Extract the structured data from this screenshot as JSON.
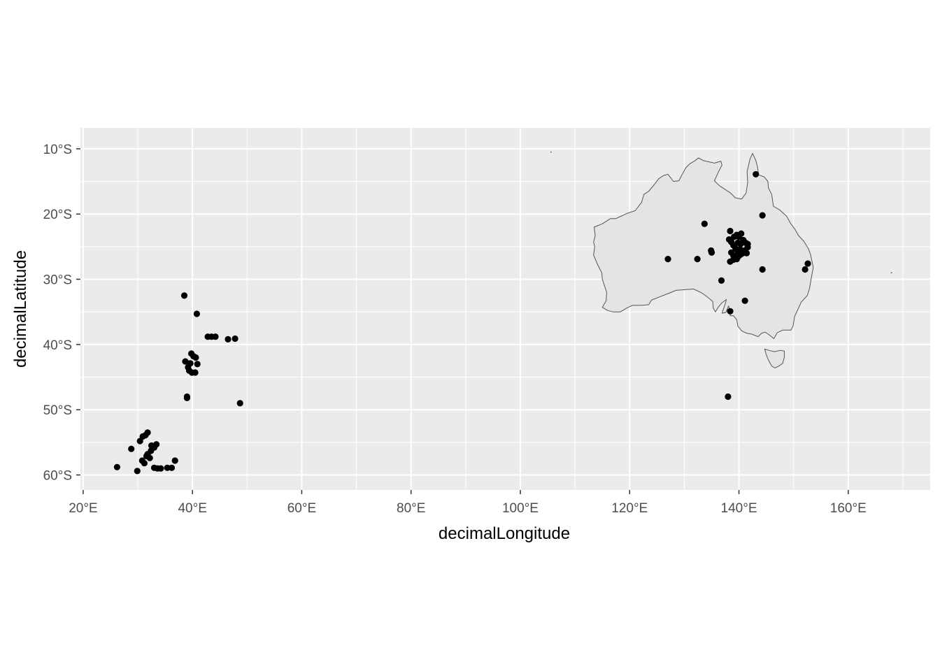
{
  "chart_data": {
    "type": "scatter",
    "title": "",
    "xlabel": "decimalLongitude",
    "ylabel": "decimalLatitude",
    "xlim": [
      19.5,
      175
    ],
    "ylim": [
      -62.3,
      -6.8
    ],
    "x_ticks": [
      20,
      40,
      60,
      80,
      100,
      120,
      140,
      160
    ],
    "x_tick_labels": [
      "20°E",
      "40°E",
      "60°E",
      "80°E",
      "100°E",
      "120°E",
      "140°E",
      "160°E"
    ],
    "y_ticks": [
      -10,
      -20,
      -30,
      -40,
      -50,
      -60
    ],
    "y_tick_labels": [
      "10°S",
      "20°S",
      "30°S",
      "40°S",
      "50°S",
      "60°S"
    ],
    "grid": true,
    "legend": "none",
    "colors": {
      "panel": "#ebebeb",
      "grid": "#ffffff",
      "land_fill": "#e4e4e4",
      "land_outline": "#555555",
      "point": "#000000"
    },
    "basemap": "Australia and Tasmania outline",
    "basemap_outline": {
      "mainland": [
        [
          113.5,
          -22.0
        ],
        [
          114.1,
          -21.8
        ],
        [
          115.0,
          -21.5
        ],
        [
          116.5,
          -20.7
        ],
        [
          117.5,
          -20.7
        ],
        [
          118.5,
          -20.3
        ],
        [
          119.5,
          -19.9
        ],
        [
          121.0,
          -19.5
        ],
        [
          122.2,
          -18.2
        ],
        [
          122.6,
          -17.0
        ],
        [
          123.5,
          -16.5
        ],
        [
          124.5,
          -15.5
        ],
        [
          125.3,
          -14.6
        ],
        [
          126.2,
          -14.1
        ],
        [
          127.0,
          -13.9
        ],
        [
          128.0,
          -15.0
        ],
        [
          129.0,
          -14.9
        ],
        [
          129.7,
          -13.8
        ],
        [
          130.3,
          -12.9
        ],
        [
          131.0,
          -12.3
        ],
        [
          132.0,
          -11.8
        ],
        [
          132.6,
          -11.4
        ],
        [
          133.5,
          -11.8
        ],
        [
          134.5,
          -12.0
        ],
        [
          135.5,
          -12.2
        ],
        [
          136.7,
          -11.9
        ],
        [
          136.9,
          -12.5
        ],
        [
          136.4,
          -13.3
        ],
        [
          135.9,
          -14.2
        ],
        [
          135.5,
          -14.9
        ],
        [
          136.5,
          -15.7
        ],
        [
          137.6,
          -16.3
        ],
        [
          138.5,
          -16.8
        ],
        [
          139.3,
          -17.5
        ],
        [
          140.5,
          -17.7
        ],
        [
          141.3,
          -16.8
        ],
        [
          141.6,
          -15.2
        ],
        [
          141.5,
          -13.5
        ],
        [
          141.8,
          -12.4
        ],
        [
          142.0,
          -11.6
        ],
        [
          142.5,
          -10.7
        ],
        [
          143.1,
          -11.8
        ],
        [
          143.4,
          -12.8
        ],
        [
          143.6,
          -14.0
        ],
        [
          144.6,
          -14.3
        ],
        [
          145.3,
          -15.0
        ],
        [
          145.4,
          -16.0
        ],
        [
          146.0,
          -17.0
        ],
        [
          146.3,
          -18.8
        ],
        [
          147.5,
          -19.4
        ],
        [
          148.7,
          -20.3
        ],
        [
          149.5,
          -21.5
        ],
        [
          150.3,
          -22.4
        ],
        [
          150.9,
          -23.3
        ],
        [
          151.9,
          -24.2
        ],
        [
          152.7,
          -25.3
        ],
        [
          153.1,
          -26.2
        ],
        [
          153.6,
          -28.2
        ],
        [
          153.2,
          -30.0
        ],
        [
          152.9,
          -31.5
        ],
        [
          152.5,
          -32.5
        ],
        [
          151.4,
          -33.5
        ],
        [
          150.8,
          -34.6
        ],
        [
          150.2,
          -35.7
        ],
        [
          149.9,
          -37.2
        ],
        [
          149.5,
          -37.8
        ],
        [
          148.0,
          -37.8
        ],
        [
          147.0,
          -38.2
        ],
        [
          146.4,
          -39.1
        ],
        [
          145.5,
          -38.5
        ],
        [
          144.8,
          -38.1
        ],
        [
          144.1,
          -38.3
        ],
        [
          143.5,
          -38.8
        ],
        [
          142.3,
          -38.4
        ],
        [
          141.5,
          -38.3
        ],
        [
          140.5,
          -37.9
        ],
        [
          139.8,
          -37.2
        ],
        [
          139.6,
          -36.2
        ],
        [
          139.0,
          -35.6
        ],
        [
          138.4,
          -35.6
        ],
        [
          138.5,
          -34.9
        ],
        [
          138.1,
          -34.1
        ],
        [
          137.6,
          -35.1
        ],
        [
          136.9,
          -35.2
        ],
        [
          137.4,
          -34.0
        ],
        [
          137.7,
          -33.1
        ],
        [
          136.9,
          -33.6
        ],
        [
          136.2,
          -34.3
        ],
        [
          135.7,
          -35.0
        ],
        [
          135.3,
          -34.4
        ],
        [
          135.2,
          -33.4
        ],
        [
          134.2,
          -32.7
        ],
        [
          133.2,
          -32.1
        ],
        [
          131.7,
          -31.5
        ],
        [
          130.0,
          -31.6
        ],
        [
          128.5,
          -31.7
        ],
        [
          127.0,
          -32.2
        ],
        [
          125.5,
          -32.7
        ],
        [
          124.0,
          -33.2
        ],
        [
          123.5,
          -33.9
        ],
        [
          122.2,
          -34.0
        ],
        [
          120.5,
          -34.0
        ],
        [
          119.5,
          -34.4
        ],
        [
          118.3,
          -35.0
        ],
        [
          117.0,
          -35.0
        ],
        [
          116.0,
          -34.8
        ],
        [
          115.0,
          -34.3
        ],
        [
          115.7,
          -33.3
        ],
        [
          115.8,
          -32.0
        ],
        [
          115.4,
          -31.0
        ],
        [
          115.0,
          -30.0
        ],
        [
          114.9,
          -29.0
        ],
        [
          114.1,
          -27.7
        ],
        [
          113.4,
          -26.3
        ],
        [
          113.6,
          -25.0
        ],
        [
          113.4,
          -24.3
        ],
        [
          113.7,
          -23.3
        ],
        [
          113.5,
          -22.0
        ]
      ],
      "tasmania": [
        [
          144.7,
          -40.7
        ],
        [
          145.5,
          -40.9
        ],
        [
          146.5,
          -41.1
        ],
        [
          147.5,
          -40.9
        ],
        [
          148.3,
          -41.0
        ],
        [
          148.3,
          -42.0
        ],
        [
          148.0,
          -42.9
        ],
        [
          147.3,
          -43.3
        ],
        [
          146.6,
          -43.6
        ],
        [
          146.0,
          -43.3
        ],
        [
          145.4,
          -42.4
        ],
        [
          145.0,
          -41.6
        ],
        [
          144.7,
          -40.7
        ]
      ]
    },
    "series": [
      {
        "points": [
          [
            38.5,
            -32.5
          ],
          [
            40.8,
            -35.3
          ],
          [
            42.8,
            -38.8
          ],
          [
            43.5,
            -38.8
          ],
          [
            44.2,
            -38.8
          ],
          [
            46.5,
            -39.2
          ],
          [
            47.8,
            -39.1
          ],
          [
            38.7,
            -42.6
          ],
          [
            39.2,
            -43.5
          ],
          [
            39.6,
            -42.9
          ],
          [
            39.8,
            -41.4
          ],
          [
            40.2,
            -41.8
          ],
          [
            40.6,
            -42.0
          ],
          [
            40.9,
            -43.0
          ],
          [
            39.4,
            -44.0
          ],
          [
            39.9,
            -44.3
          ],
          [
            40.5,
            -44.3
          ],
          [
            39.0,
            -48.0
          ],
          [
            39.0,
            -48.2
          ],
          [
            48.7,
            -49.0
          ],
          [
            28.8,
            -56.0
          ],
          [
            30.4,
            -54.8
          ],
          [
            30.9,
            -54.1
          ],
          [
            31.4,
            -53.9
          ],
          [
            31.8,
            -53.5
          ],
          [
            32.5,
            -55.5
          ],
          [
            33.0,
            -55.8
          ],
          [
            33.4,
            -55.3
          ],
          [
            31.8,
            -56.8
          ],
          [
            32.2,
            -57.4
          ],
          [
            30.8,
            -57.8
          ],
          [
            31.2,
            -58.2
          ],
          [
            26.2,
            -58.8
          ],
          [
            29.9,
            -59.4
          ],
          [
            33.0,
            -58.9
          ],
          [
            33.6,
            -59.0
          ],
          [
            34.2,
            -59.0
          ],
          [
            35.4,
            -58.9
          ],
          [
            36.2,
            -58.9
          ],
          [
            36.8,
            -57.8
          ],
          [
            32.4,
            -56.3
          ],
          [
            31.6,
            -57.1
          ],
          [
            143.1,
            -13.9
          ],
          [
            144.3,
            -20.2
          ],
          [
            133.7,
            -21.5
          ],
          [
            127.0,
            -26.9
          ],
          [
            132.4,
            -26.9
          ],
          [
            134.9,
            -25.6
          ],
          [
            135.0,
            -25.9
          ],
          [
            138.4,
            -22.6
          ],
          [
            138.2,
            -23.9
          ],
          [
            138.6,
            -24.3
          ],
          [
            139.1,
            -23.5
          ],
          [
            139.6,
            -23.2
          ],
          [
            140.0,
            -23.5
          ],
          [
            140.4,
            -23.0
          ],
          [
            140.8,
            -24.0
          ],
          [
            141.2,
            -24.4
          ],
          [
            141.6,
            -25.1
          ],
          [
            139.0,
            -24.8
          ],
          [
            139.4,
            -25.3
          ],
          [
            139.8,
            -25.8
          ],
          [
            140.2,
            -25.4
          ],
          [
            140.6,
            -25.7
          ],
          [
            141.0,
            -25.6
          ],
          [
            141.4,
            -26.0
          ],
          [
            138.6,
            -25.9
          ],
          [
            139.0,
            -26.4
          ],
          [
            139.5,
            -26.8
          ],
          [
            139.9,
            -26.5
          ],
          [
            140.3,
            -26.2
          ],
          [
            140.7,
            -26.0
          ],
          [
            138.4,
            -27.3
          ],
          [
            139.0,
            -27.0
          ],
          [
            139.6,
            -26.9
          ],
          [
            141.6,
            -24.6
          ],
          [
            140.3,
            -24.6
          ],
          [
            139.8,
            -24.4
          ],
          [
            136.8,
            -30.2
          ],
          [
            138.4,
            -34.9
          ],
          [
            141.1,
            -33.3
          ],
          [
            144.3,
            -28.5
          ],
          [
            152.1,
            -28.5
          ],
          [
            152.6,
            -27.6
          ],
          [
            138.0,
            -48.0
          ]
        ]
      }
    ]
  }
}
